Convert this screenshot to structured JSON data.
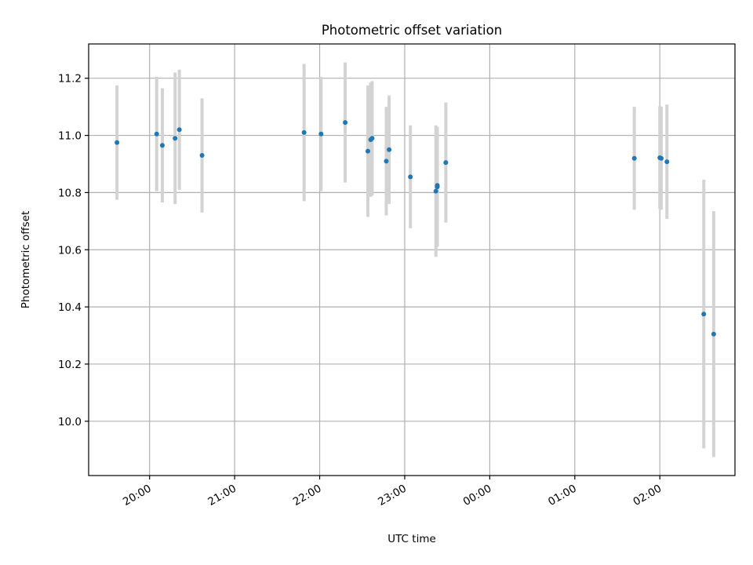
{
  "chart_data": {
    "type": "scatter",
    "title": "Photometric offset variation",
    "xlabel": "UTC time",
    "ylabel": "Photometric offset",
    "x_tick_labels": [
      "20:00",
      "21:00",
      "22:00",
      "23:00",
      "00:00",
      "01:00",
      "02:00"
    ],
    "y_tick_labels": [
      "10.0",
      "10.2",
      "10.4",
      "10.6",
      "10.8",
      "11.0",
      "11.2"
    ],
    "y_ticks": [
      10.0,
      10.2,
      10.4,
      10.6,
      10.8,
      11.0,
      11.2
    ],
    "xlim": [
      "19:17",
      "02:53"
    ],
    "ylim": [
      9.81,
      11.32
    ],
    "grid": true,
    "colors": {
      "points": "#1f77b4",
      "errorbars": "#d3d3d3",
      "grid": "#b0b0b0"
    },
    "points": [
      {
        "x": "19:37",
        "y": 10.975,
        "err": 0.2
      },
      {
        "x": "20:05",
        "y": 11.005,
        "err": 0.2
      },
      {
        "x": "20:09",
        "y": 10.965,
        "err": 0.2
      },
      {
        "x": "20:18",
        "y": 10.99,
        "err": 0.23
      },
      {
        "x": "20:21",
        "y": 11.02,
        "err": 0.21
      },
      {
        "x": "20:37",
        "y": 10.93,
        "err": 0.2
      },
      {
        "x": "21:49",
        "y": 11.01,
        "err": 0.24
      },
      {
        "x": "22:01",
        "y": 11.005,
        "err": 0.2
      },
      {
        "x": "22:18",
        "y": 11.045,
        "err": 0.21
      },
      {
        "x": "22:34",
        "y": 10.945,
        "err": 0.23
      },
      {
        "x": "22:36",
        "y": 10.985,
        "err": 0.2
      },
      {
        "x": "22:37",
        "y": 10.99,
        "err": 0.2
      },
      {
        "x": "22:47",
        "y": 10.91,
        "err": 0.19
      },
      {
        "x": "22:49",
        "y": 10.95,
        "err": 0.19
      },
      {
        "x": "23:04",
        "y": 10.855,
        "err": 0.18
      },
      {
        "x": "23:22",
        "y": 10.805,
        "err": 0.23
      },
      {
        "x": "23:23",
        "y": 10.82,
        "err": 0.21
      },
      {
        "x": "23:23",
        "y": 10.825,
        "err": 0.2
      },
      {
        "x": "23:29",
        "y": 10.905,
        "err": 0.21
      },
      {
        "x": "01:42",
        "y": 10.92,
        "err": 0.18
      },
      {
        "x": "02:00",
        "y": 10.922,
        "err": 0.18
      },
      {
        "x": "02:01",
        "y": 10.92,
        "err": 0.18
      },
      {
        "x": "02:05",
        "y": 10.908,
        "err": 0.2
      },
      {
        "x": "02:31",
        "y": 10.375,
        "err": 0.47
      },
      {
        "x": "02:38",
        "y": 10.305,
        "err": 0.43
      }
    ]
  }
}
